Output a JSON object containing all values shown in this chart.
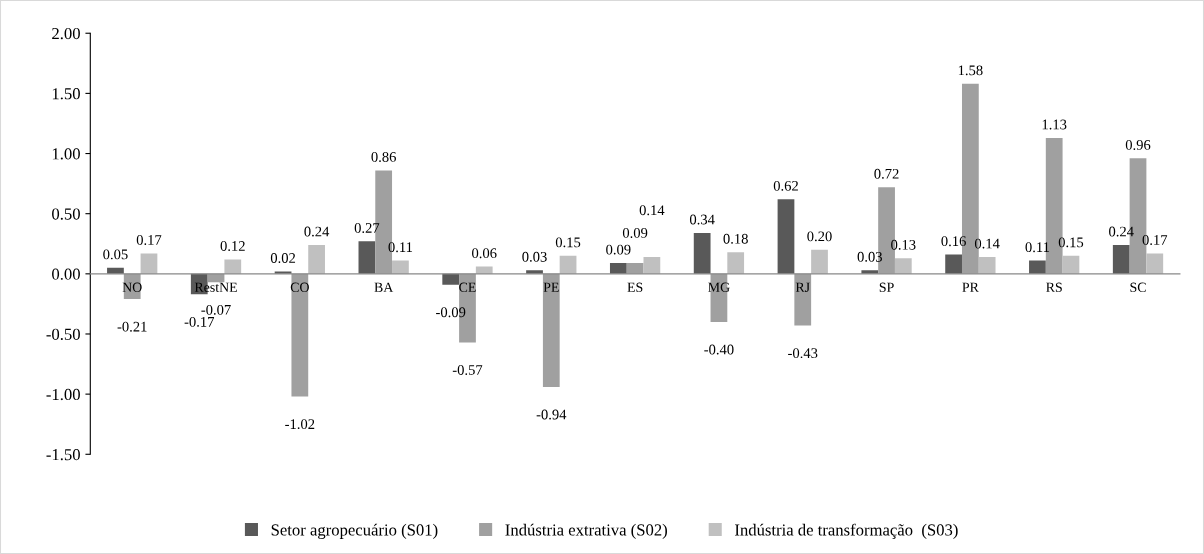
{
  "chart_data": {
    "type": "bar",
    "categories": [
      "NO",
      "RestNE",
      "CO",
      "BA",
      "CE",
      "PE",
      "ES",
      "MG",
      "RJ",
      "SP",
      "PR",
      "RS",
      "SC"
    ],
    "series": [
      {
        "name": "Setor agropecuário (S01)",
        "color": "#595959",
        "values": [
          0.05,
          -0.17,
          0.02,
          0.27,
          -0.09,
          0.03,
          0.09,
          0.34,
          0.62,
          0.03,
          0.16,
          0.11,
          0.24
        ],
        "value_labels": [
          "0.05",
          "-0.17",
          "0.02",
          "0.27",
          "-0.09",
          "0.03",
          "0.09",
          "0.34",
          "0.62",
          "0.03",
          "0.16",
          "0.11",
          "0.24"
        ]
      },
      {
        "name": "Indústria extrativa (S02)",
        "color": "#a0a0a0",
        "values": [
          -0.21,
          -0.07,
          -1.02,
          0.86,
          -0.57,
          -0.94,
          0.09,
          -0.4,
          -0.43,
          0.72,
          1.58,
          1.13,
          0.96
        ],
        "value_labels": [
          "-0.21",
          "-0.07",
          "-1.02",
          "0.86",
          "-0.57",
          "-0.94",
          "0.09",
          "-0.40",
          "-0.43",
          "0.72",
          "1.58",
          "1.13",
          "0.96"
        ]
      },
      {
        "name": "Indústria de transformação  (S03)",
        "color": "#c0c0c0",
        "values": [
          0.17,
          0.12,
          0.24,
          0.11,
          0.06,
          0.15,
          0.14,
          0.18,
          0.2,
          0.13,
          0.14,
          0.15,
          0.17
        ],
        "value_labels": [
          "0.17",
          "0.12",
          "0.24",
          "0.11",
          "0.06",
          "0.15",
          "0.14",
          "0.18",
          "0.20",
          "0.13",
          "0.14",
          "0.15",
          "0.17"
        ]
      }
    ],
    "ylim": [
      -1.5,
      2.0
    ],
    "yticks": [
      {
        "value": -1.5,
        "label": "-1.50"
      },
      {
        "value": -1.0,
        "label": "-1.00"
      },
      {
        "value": -0.5,
        "label": "-0.50"
      },
      {
        "value": 0.0,
        "label": "0.00"
      },
      {
        "value": 0.5,
        "label": "0.50"
      },
      {
        "value": 1.0,
        "label": "1.00"
      },
      {
        "value": 1.5,
        "label": "1.50"
      },
      {
        "value": 2.0,
        "label": "2.00"
      }
    ],
    "grid": false,
    "legend": "bottom"
  }
}
